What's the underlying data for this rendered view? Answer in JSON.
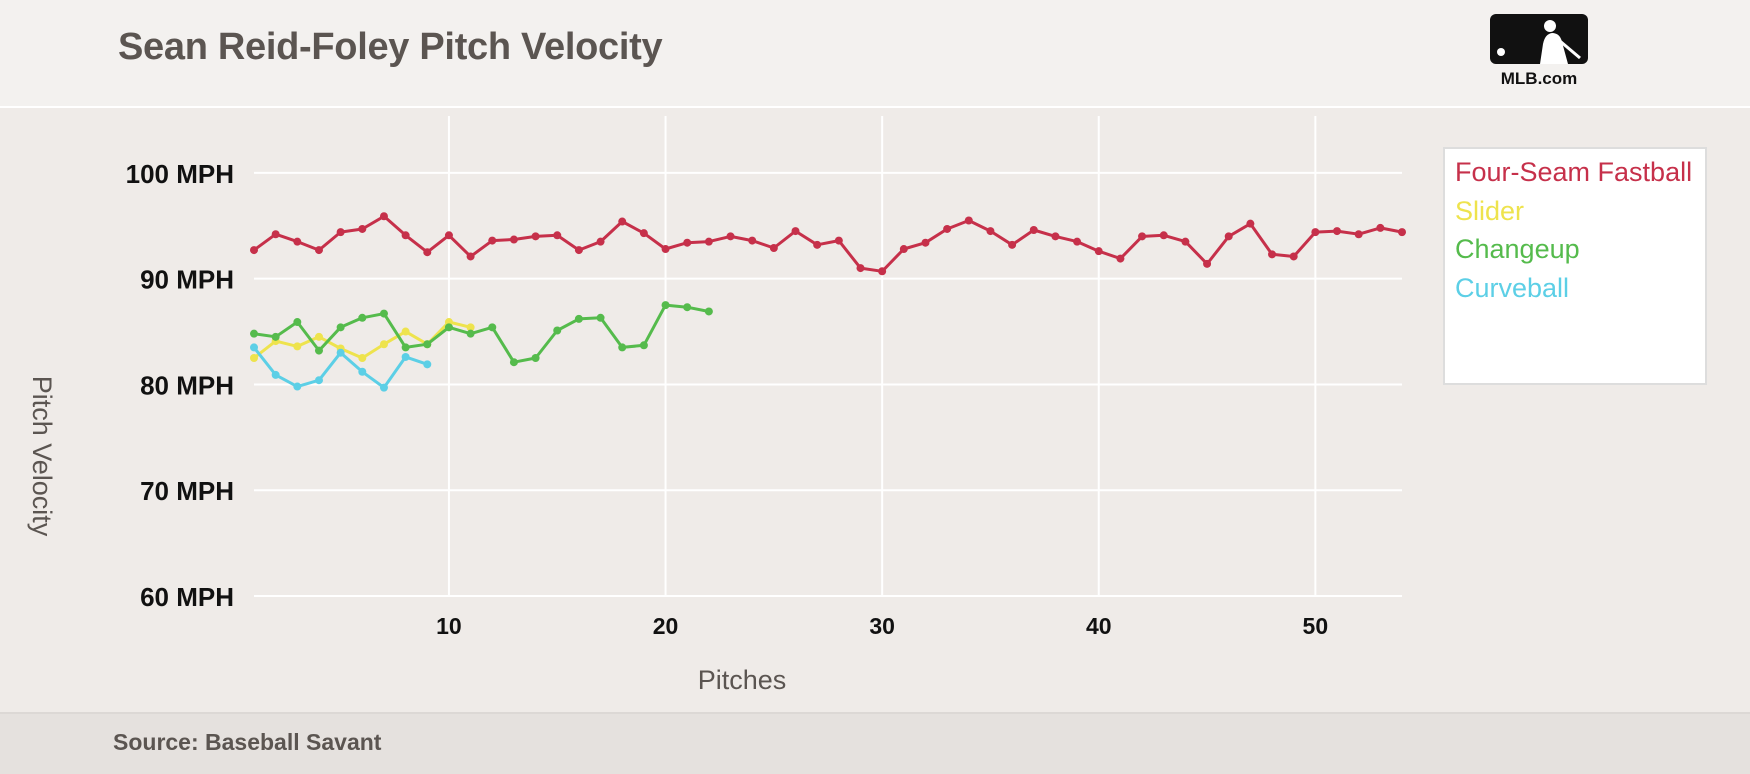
{
  "header": {
    "title": "Sean Reid-Foley Pitch Velocity",
    "logo_text": "MLB.com",
    "logo_icon": "mlb-batter-logo-icon"
  },
  "footer": {
    "source": "Source: Baseball Savant"
  },
  "chart_data": {
    "type": "line",
    "title": "Sean Reid-Foley Pitch Velocity",
    "xlabel": "Pitches",
    "ylabel": "Pitch Velocity",
    "xlim": [
      1,
      54
    ],
    "ylim": [
      60,
      105
    ],
    "x_ticks": [
      10,
      20,
      30,
      40,
      50
    ],
    "y_ticks": [
      60,
      70,
      80,
      90,
      100
    ],
    "y_tick_labels": [
      "60 MPH",
      "70 MPH",
      "80 MPH",
      "90 MPH",
      "100 MPH"
    ],
    "grid": true,
    "legend_position": "right",
    "series": [
      {
        "name": "Four-Seam Fastball",
        "color": "#c6304a",
        "x": [
          1,
          2,
          3,
          4,
          5,
          6,
          7,
          8,
          9,
          10,
          11,
          12,
          13,
          14,
          15,
          16,
          17,
          18,
          19,
          20,
          21,
          22,
          23,
          24,
          25,
          26,
          27,
          28,
          29,
          30,
          31,
          32,
          33,
          34,
          35,
          36,
          37,
          38,
          39,
          40,
          41,
          42,
          43,
          44,
          45,
          46,
          47,
          48,
          49,
          50,
          51,
          52,
          53,
          54
        ],
        "values": [
          92.7,
          94.2,
          93.5,
          92.7,
          94.4,
          94.7,
          95.9,
          94.1,
          92.5,
          94.1,
          92.1,
          93.6,
          93.7,
          94.0,
          94.1,
          92.7,
          93.5,
          95.4,
          94.3,
          92.8,
          93.4,
          93.5,
          94.0,
          93.6,
          92.9,
          94.5,
          93.2,
          93.6,
          91.0,
          90.7,
          92.8,
          93.4,
          94.7,
          95.5,
          94.5,
          93.2,
          94.6,
          94.0,
          93.5,
          92.6,
          91.9,
          94.0,
          94.1,
          93.5,
          91.4,
          94.0,
          95.2,
          92.3,
          92.1,
          94.4,
          94.5,
          94.2,
          94.8,
          94.4
        ]
      },
      {
        "name": "Slider",
        "color": "#eee34d",
        "x": [
          1,
          2,
          3,
          4,
          5,
          6,
          7,
          8,
          9,
          10,
          11
        ],
        "values": [
          82.5,
          84.1,
          83.6,
          84.5,
          83.4,
          82.5,
          83.8,
          85.0,
          83.8,
          85.9,
          85.4
        ]
      },
      {
        "name": "Changeup",
        "color": "#55bb4c",
        "x": [
          1,
          2,
          3,
          4,
          5,
          6,
          7,
          8,
          9,
          10,
          11,
          12,
          13,
          14,
          15,
          16,
          17,
          18,
          19,
          20,
          21,
          22
        ],
        "values": [
          84.8,
          84.5,
          85.9,
          83.2,
          85.4,
          86.3,
          86.7,
          83.5,
          83.8,
          85.4,
          84.8,
          85.4,
          82.1,
          82.5,
          85.1,
          86.2,
          86.3,
          83.5,
          83.7,
          87.5,
          87.3,
          86.9
        ]
      },
      {
        "name": "Curveball",
        "color": "#5ccfe6",
        "x": [
          1,
          2,
          3,
          4,
          5,
          6,
          7,
          8,
          9
        ],
        "values": [
          83.5,
          80.9,
          79.8,
          80.4,
          83.0,
          81.2,
          79.7,
          82.6,
          81.9
        ]
      }
    ]
  }
}
